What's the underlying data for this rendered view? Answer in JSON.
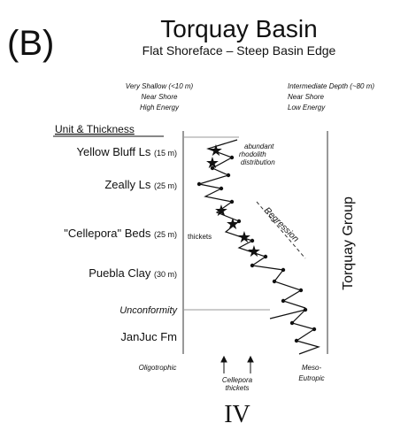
{
  "panel_label": "(B)",
  "title": "Torquay Basin",
  "subtitle": "Flat Shoreface – Steep Basin Edge",
  "left_header": [
    "Very Shallow (<10 m)",
    "Near Shore",
    "High Energy"
  ],
  "right_header": [
    "Intermediate Depth (~80 m)",
    "Near Shore",
    "Low Energy"
  ],
  "units_heading": "Unit & Thickness",
  "units": [
    {
      "name": "Yellow Bluff Ls",
      "thickness": "(15 m)"
    },
    {
      "name": "Zeally Ls",
      "thickness": "(25 m)"
    },
    {
      "name": "\"Cellepora\" Beds",
      "thickness": "(25 m)"
    },
    {
      "name": "Puebla Clay",
      "thickness": "(30 m)"
    },
    {
      "name": "Unconformity"
    },
    {
      "name": "JanJuc Fm"
    }
  ],
  "annotations": {
    "rhodolith": [
      "abundant",
      "rhodolith",
      "distribution"
    ],
    "thickets": "thickets",
    "regression": "Regression"
  },
  "group": "Torquay Group",
  "bottom": {
    "left": "Oligotrophic",
    "middle": [
      "Cellepora",
      "thickets"
    ],
    "right": [
      "Meso-",
      "Eutropic"
    ],
    "label": "IV"
  }
}
